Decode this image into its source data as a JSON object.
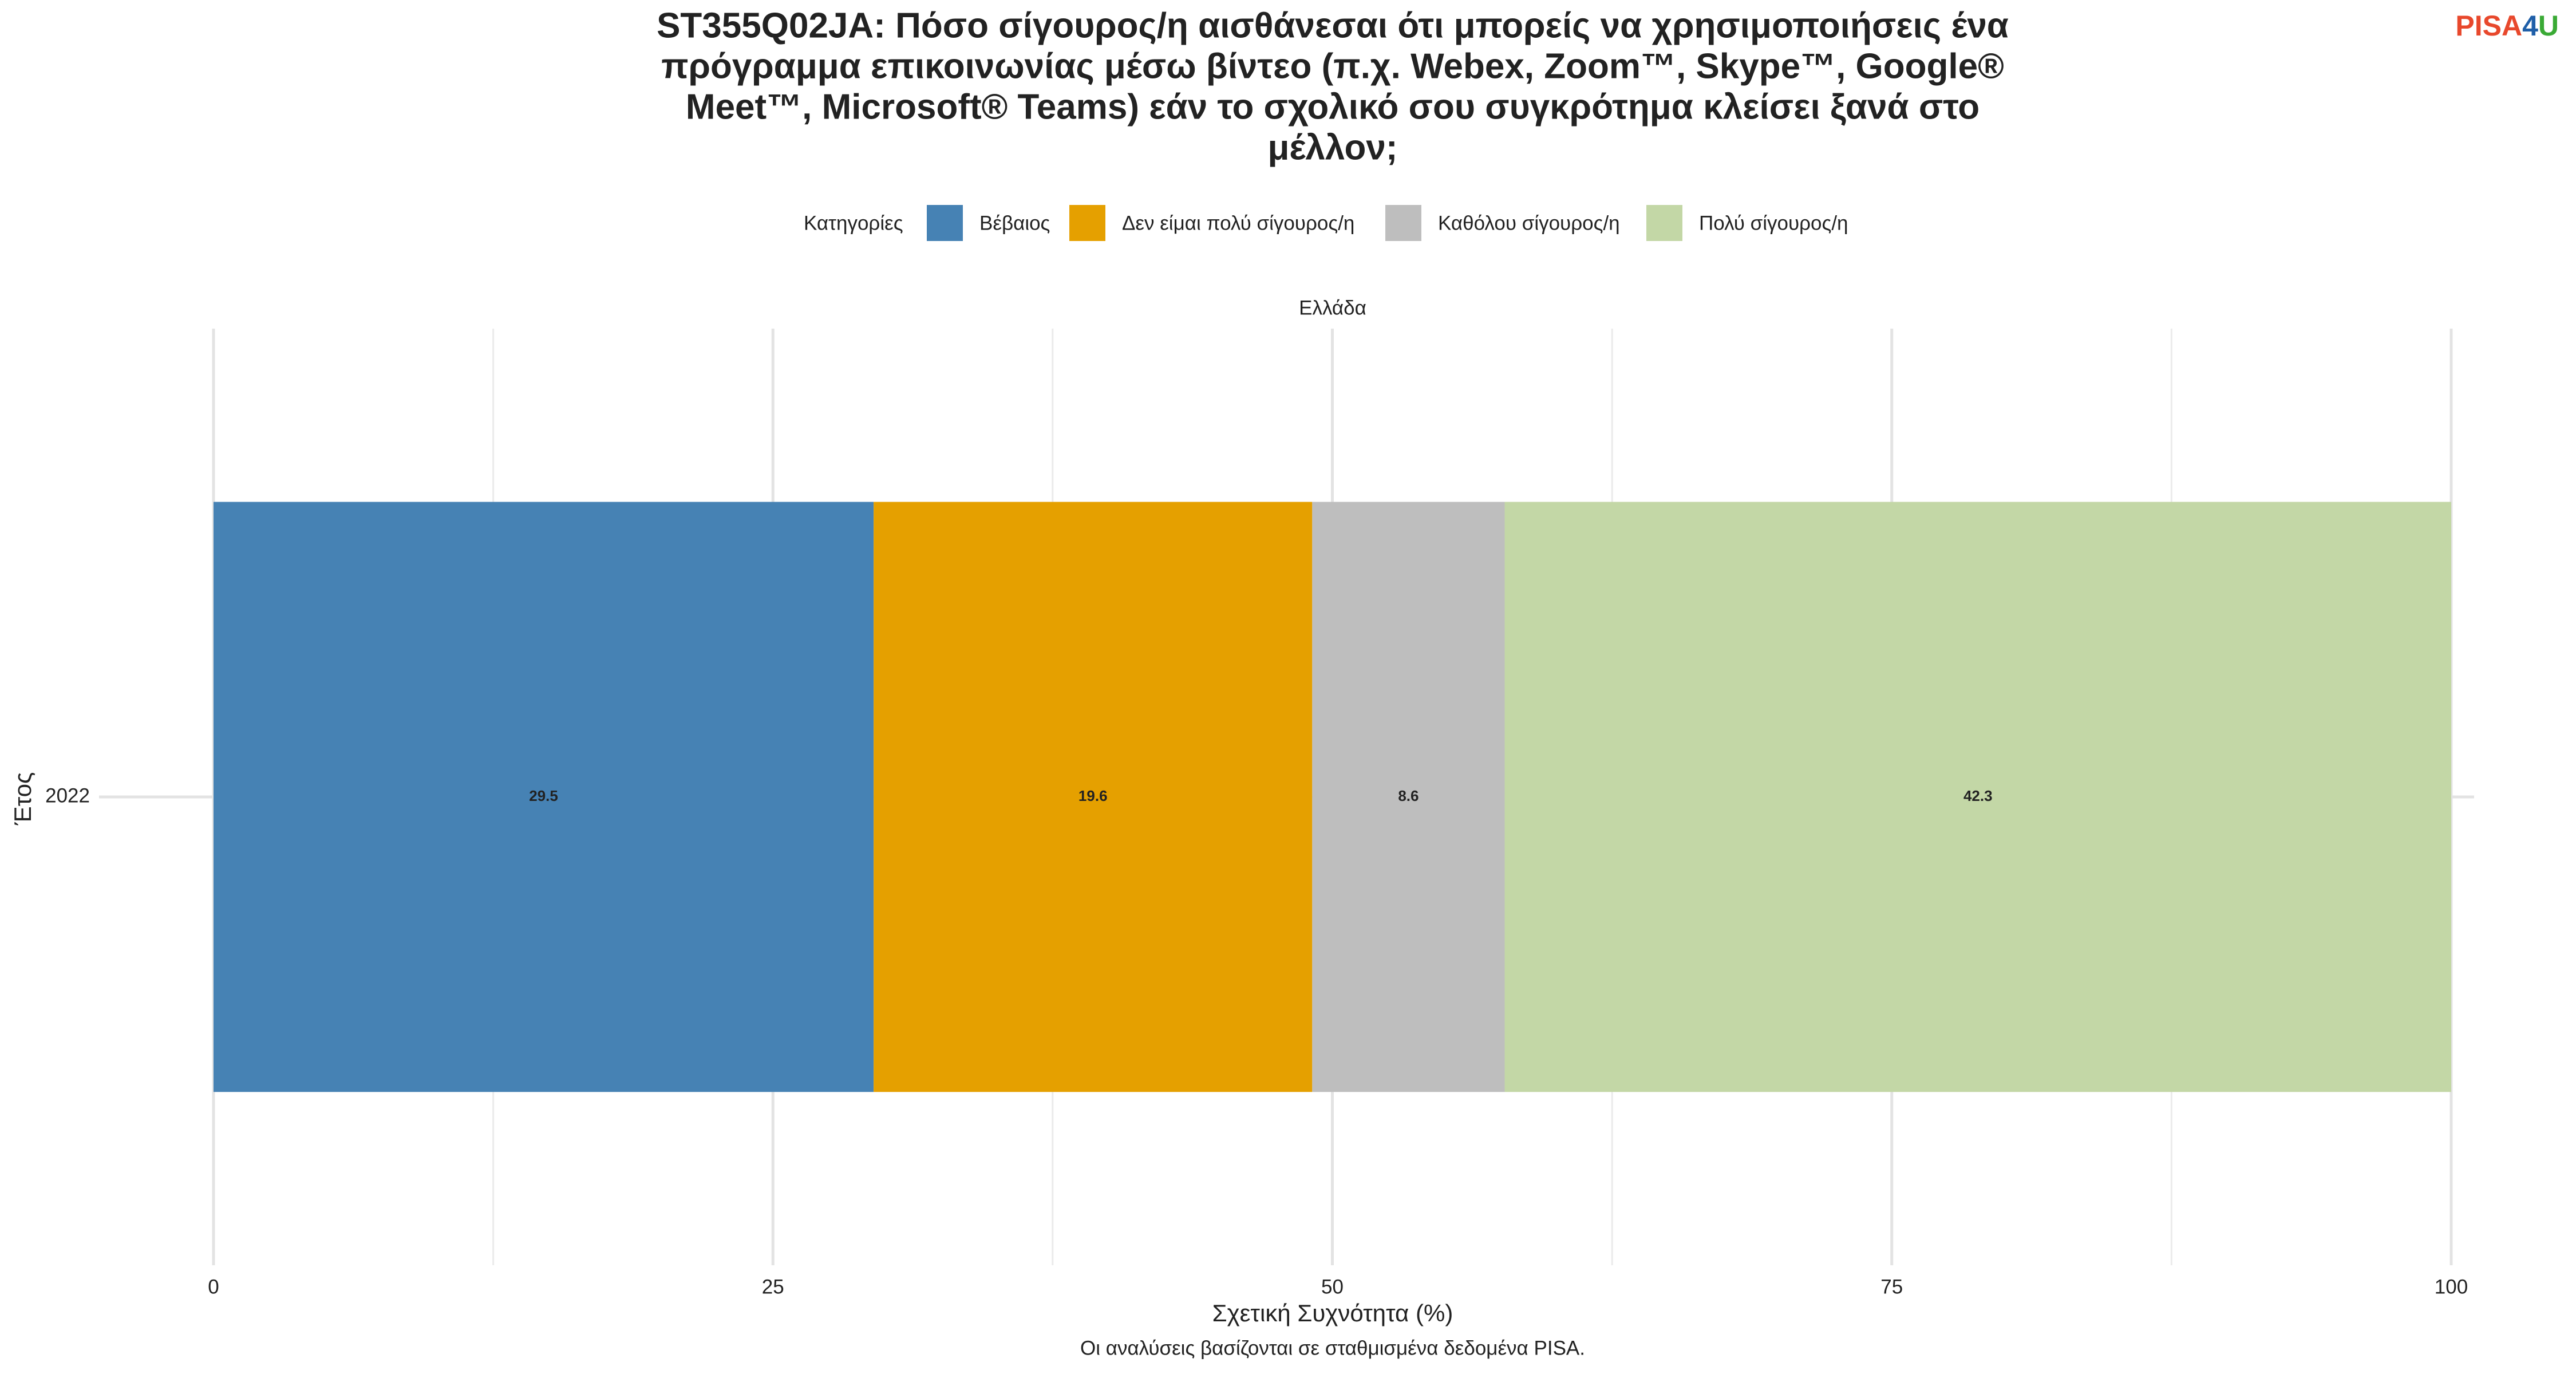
{
  "chart_data": {
    "type": "stacked-bar-horizontal",
    "title": [
      "ST355Q02JA: Πόσο σίγουρος/η αισθάνεσαι ότι μπορείς να χρησιμοποιήσεις ένα",
      "πρόγραμμα επικοινωνίας μέσω βίντεο (π.χ. Webex, Zoom™, Skype™, Google®",
      "Meet™, Microsoft® Teams) εάν το σχολικό σου συγκρότημα κλείσει ξανά στο",
      "μέλλον;"
    ],
    "logo": [
      "PISA",
      "4",
      "U"
    ],
    "legend_title": "Κατηγορίες",
    "legend_position": "top",
    "facet": "Ελλάδα",
    "x_label": "Σχετική Συχνότητα (%)",
    "y_label": "Έτος",
    "caption": "Οι αναλύσεις βασίζονται σε σταθμισμένα δεδομένα PISA.",
    "categories": [
      "2022"
    ],
    "series": [
      {
        "name": "Βέβαιος",
        "color": "#4682b4",
        "values": [
          29.5
        ]
      },
      {
        "name": "Δεν είμαι πολύ σίγουρος/η",
        "color": "#e5a000",
        "values": [
          19.6
        ]
      },
      {
        "name": "Καθόλου σίγουρος/η",
        "color": "#bebebe",
        "values": [
          8.6
        ]
      },
      {
        "name": "Πολύ σίγουρος/η",
        "color": "#c3d7a6",
        "values": [
          42.3
        ]
      }
    ],
    "xlim": [
      0,
      100
    ],
    "xticks": [
      0,
      25,
      50,
      75,
      100
    ],
    "grid": true
  }
}
